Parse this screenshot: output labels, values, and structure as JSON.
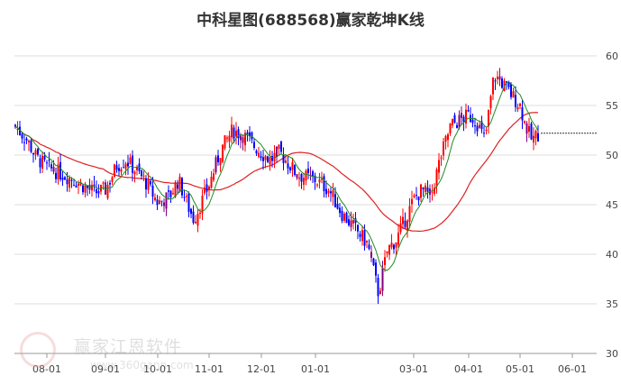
{
  "title": "中科星图(688568)赢家乾坤K线",
  "watermark": {
    "name": "赢家江恩软件",
    "url": "www.360gann.com"
  },
  "colors": {
    "up": "#ff0000",
    "down": "#0000ff",
    "neutral": "#800080",
    "ma_short": "#228b22",
    "ma_long": "#dd2222",
    "grid": "#dddddd"
  },
  "chart_data": {
    "type": "candlestick",
    "ylim": [
      30,
      62
    ],
    "y_ticks": [
      30,
      35,
      40,
      45,
      50,
      55,
      60
    ],
    "x_tick_labels": [
      "08-01",
      "09-01",
      "10-01",
      "11-01",
      "12-01",
      "01-01",
      "03-01",
      "04-01",
      "05-01",
      "06-01"
    ],
    "last_price": 52.2,
    "close_series": [
      {
        "date": "07-08",
        "close": 53.0
      },
      {
        "date": "07-15",
        "close": 51.5
      },
      {
        "date": "07-22",
        "close": 49.8
      },
      {
        "date": "08-01",
        "close": 48.8
      },
      {
        "date": "08-15",
        "close": 47.6
      },
      {
        "date": "08-25",
        "close": 46.2
      },
      {
        "date": "09-01",
        "close": 46.5
      },
      {
        "date": "09-08",
        "close": 49.0
      },
      {
        "date": "09-15",
        "close": 49.5
      },
      {
        "date": "09-22",
        "close": 47.5
      },
      {
        "date": "10-01",
        "close": 45.2
      },
      {
        "date": "10-08",
        "close": 45.8
      },
      {
        "date": "10-15",
        "close": 47.5
      },
      {
        "date": "10-22",
        "close": 45.0
      },
      {
        "date": "10-28",
        "close": 43.5
      },
      {
        "date": "11-01",
        "close": 47.0
      },
      {
        "date": "11-08",
        "close": 50.5
      },
      {
        "date": "11-15",
        "close": 52.5
      },
      {
        "date": "11-25",
        "close": 52.0
      },
      {
        "date": "12-01",
        "close": 50.2
      },
      {
        "date": "12-08",
        "close": 49.5
      },
      {
        "date": "12-15",
        "close": 50.3
      },
      {
        "date": "12-22",
        "close": 48.0
      },
      {
        "date": "01-01",
        "close": 47.5
      },
      {
        "date": "01-08",
        "close": 46.5
      },
      {
        "date": "01-15",
        "close": 44.0
      },
      {
        "date": "01-22",
        "close": 42.5
      },
      {
        "date": "02-01",
        "close": 41.0
      },
      {
        "date": "02-08",
        "close": 36.0
      },
      {
        "date": "02-12",
        "close": 40.5
      },
      {
        "date": "02-20",
        "close": 41.5
      },
      {
        "date": "03-01",
        "close": 45.5
      },
      {
        "date": "03-08",
        "close": 46.5
      },
      {
        "date": "03-15",
        "close": 45.8
      },
      {
        "date": "03-22",
        "close": 49.5
      },
      {
        "date": "03-28",
        "close": 53.0
      },
      {
        "date": "04-01",
        "close": 54.0
      },
      {
        "date": "04-08",
        "close": 53.5
      },
      {
        "date": "04-15",
        "close": 51.5
      },
      {
        "date": "04-22",
        "close": 58.0
      },
      {
        "date": "04-28",
        "close": 57.5
      },
      {
        "date": "05-01",
        "close": 55.0
      },
      {
        "date": "05-08",
        "close": 53.0
      },
      {
        "date": "05-15",
        "close": 51.5
      },
      {
        "date": "05-20",
        "close": 52.2
      }
    ]
  }
}
